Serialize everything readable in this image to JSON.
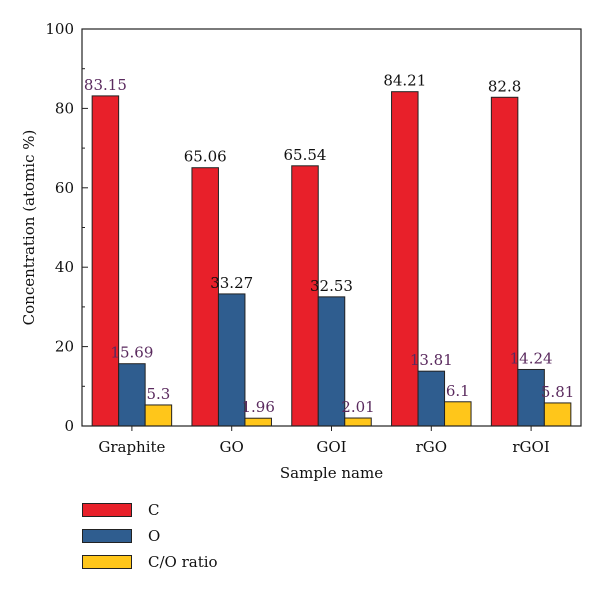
{
  "chart_data": {
    "type": "bar",
    "categories": [
      "Graphite",
      "GO",
      "GOI",
      "rGO",
      "rGOI"
    ],
    "series": [
      {
        "name": "C",
        "color": "#e8202a",
        "values": [
          83.15,
          65.06,
          65.54,
          84.21,
          82.8
        ],
        "labels": [
          "83.15",
          "65.06",
          "65.54",
          "84.21",
          "82.8"
        ],
        "label_colors": [
          "#5a2a5e",
          "#111111",
          "#111111",
          "#111111",
          "#111111"
        ]
      },
      {
        "name": "O",
        "color": "#2f5d8f",
        "values": [
          15.69,
          33.27,
          32.53,
          13.81,
          14.24
        ],
        "labels": [
          "15.69",
          "33.27",
          "32.53",
          "13.81",
          "14.24"
        ],
        "label_colors": [
          "#5a2a5e",
          "#111111",
          "#111111",
          "#5a2a5e",
          "#5a2a5e"
        ]
      },
      {
        "name": "C/O ratio",
        "color": "#ffc61a",
        "values": [
          5.3,
          1.96,
          2.01,
          6.1,
          5.81
        ],
        "labels": [
          "5.3",
          "1.96",
          "2.01",
          "6.1",
          "5.81"
        ],
        "label_colors": [
          "#5a2a5e",
          "#5a2a5e",
          "#5a2a5e",
          "#5a2a5e",
          "#5a2a5e"
        ]
      }
    ],
    "xlabel": "Sample name",
    "ylabel": "Concentration (atomic %)",
    "ylim": [
      0,
      100
    ],
    "yticks": [
      0,
      20,
      40,
      60,
      80,
      100
    ],
    "grid": false,
    "legend_position": "bottom-left"
  }
}
